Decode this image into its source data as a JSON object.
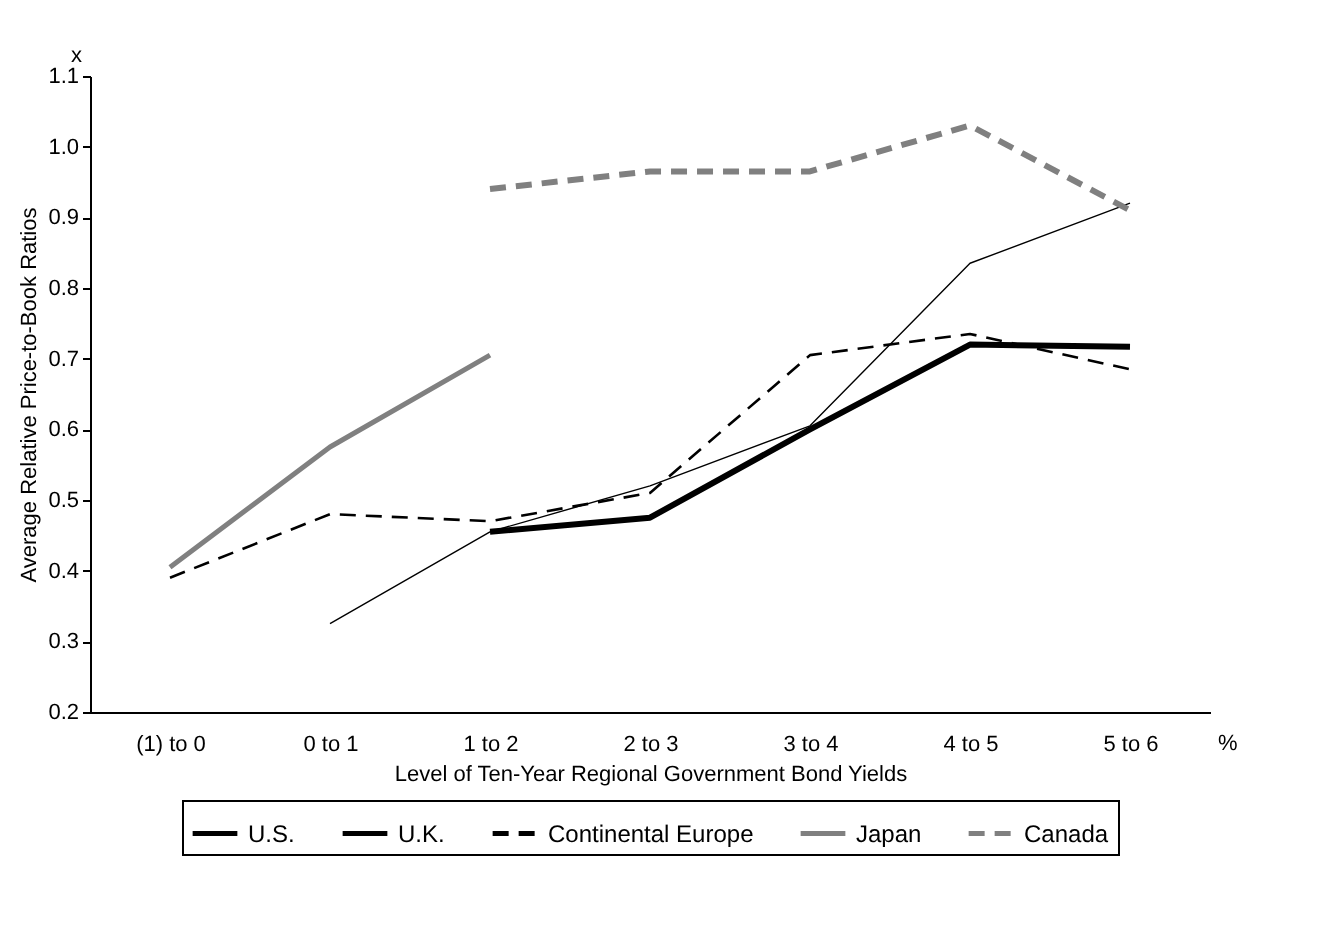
{
  "chart_data": {
    "type": "line",
    "xlabel": "Level of Ten-Year Regional Government Bond Yields",
    "ylabel": "Average Relative Price-to-Book Ratios",
    "annotations": [
      "x",
      "%"
    ],
    "categories": [
      "(1) to 0",
      "0 to 1",
      "1 to 2",
      "2 to 3",
      "3 to 4",
      "4 to 5",
      "5 to 6"
    ],
    "series": [
      {
        "name": "U.S.",
        "color": "#000000",
        "line_style": "solid",
        "values": [
          null,
          null,
          0.455,
          0.475,
          0.6,
          0.72,
          0.717
        ]
      },
      {
        "name": "U.K.",
        "color": "#000000",
        "line_style": "solid",
        "values": [
          null,
          0.325,
          0.455,
          0.52,
          0.605,
          0.835,
          0.92
        ]
      },
      {
        "name": "Continental Europe",
        "color": "#000000",
        "line_style": "dashed",
        "values": [
          0.39,
          0.48,
          0.47,
          0.51,
          0.705,
          0.735,
          0.685
        ]
      },
      {
        "name": "Japan",
        "color": "#808080",
        "line_style": "solid",
        "values": [
          0.405,
          0.575,
          0.705,
          null,
          null,
          null,
          null
        ]
      },
      {
        "name": "Canada",
        "color": "#808080",
        "line_style": "dashed",
        "values": [
          null,
          null,
          0.94,
          0.965,
          0.965,
          1.03,
          0.91
        ]
      }
    ],
    "ylim": [
      0.2,
      1.1
    ],
    "yticks": [
      0.2,
      0.3,
      0.4,
      0.5,
      0.6,
      0.7,
      0.8,
      0.9,
      {
        "value": 1,
        "label": "1.0"
      },
      1.1
    ],
    "grid": false,
    "legend": "bottom",
    "marker": "none"
  }
}
